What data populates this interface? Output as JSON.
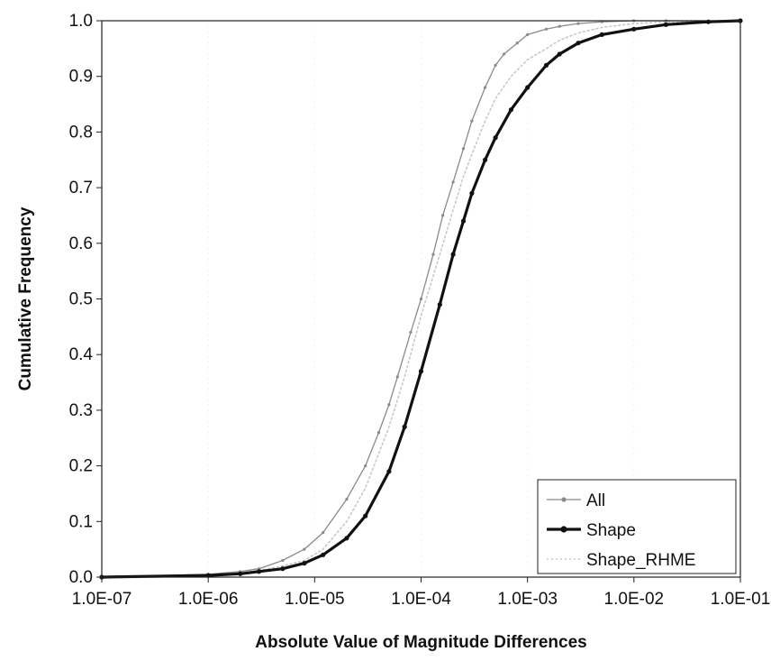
{
  "chart_data": {
    "type": "line",
    "title": "",
    "xlabel": "Absolute Value of Magnitude Differences",
    "ylabel": "Cumulative Frequency",
    "x_scale": "log",
    "xlim": [
      1e-07,
      0.1
    ],
    "ylim": [
      0.0,
      1.0
    ],
    "x_tick_labels": [
      "1.0E-07",
      "1.0E-06",
      "1.0E-05",
      "1.0E-04",
      "1.0E-03",
      "1.0E-02",
      "1.0E-01"
    ],
    "y_tick_labels": [
      "0.0",
      "0.1",
      "0.2",
      "0.3",
      "0.4",
      "0.5",
      "0.6",
      "0.7",
      "0.8",
      "0.9",
      "1.0"
    ],
    "legend_position": "bottom-right",
    "series": [
      {
        "name": "All",
        "color": "#8a8a8a",
        "style": "thin line with small markers",
        "x": [
          1e-07,
          1e-06,
          2e-06,
          3e-06,
          5e-06,
          8e-06,
          1.2e-05,
          2e-05,
          3e-05,
          4e-05,
          5e-05,
          6e-05,
          8e-05,
          0.0001,
          0.00013,
          0.00016,
          0.0002,
          0.00025,
          0.0003,
          0.0004,
          0.0005,
          0.0006,
          0.0008,
          0.001,
          0.0015,
          0.002,
          0.003,
          0.005,
          0.01,
          0.02,
          0.1
        ],
        "values": [
          0.0,
          0.005,
          0.01,
          0.015,
          0.03,
          0.05,
          0.08,
          0.14,
          0.2,
          0.26,
          0.31,
          0.36,
          0.44,
          0.5,
          0.58,
          0.65,
          0.71,
          0.77,
          0.82,
          0.88,
          0.92,
          0.94,
          0.96,
          0.975,
          0.985,
          0.99,
          0.995,
          0.998,
          1.0,
          1.0,
          1.0
        ]
      },
      {
        "name": "Shape",
        "color": "#111111",
        "style": "thick line with markers",
        "x": [
          1e-07,
          1e-06,
          2e-06,
          3e-06,
          5e-06,
          8e-06,
          1.2e-05,
          2e-05,
          3e-05,
          5e-05,
          7e-05,
          0.0001,
          0.00015,
          0.0002,
          0.00025,
          0.0003,
          0.0004,
          0.0005,
          0.0007,
          0.001,
          0.0015,
          0.002,
          0.003,
          0.005,
          0.01,
          0.02,
          0.05,
          0.1
        ],
        "values": [
          0.0,
          0.003,
          0.006,
          0.01,
          0.015,
          0.025,
          0.04,
          0.07,
          0.11,
          0.19,
          0.27,
          0.37,
          0.49,
          0.58,
          0.64,
          0.69,
          0.75,
          0.79,
          0.84,
          0.88,
          0.92,
          0.94,
          0.96,
          0.975,
          0.985,
          0.993,
          0.998,
          1.0
        ]
      },
      {
        "name": "Shape_RHME",
        "color": "#c8c8c8",
        "style": "thin dotted line",
        "x": [
          1e-07,
          1e-06,
          2e-06,
          3e-06,
          5e-06,
          8e-06,
          1.2e-05,
          2e-05,
          3e-05,
          5e-05,
          7e-05,
          0.0001,
          0.00015,
          0.0002,
          0.00025,
          0.0003,
          0.0004,
          0.0005,
          0.0007,
          0.001,
          0.0015,
          0.002,
          0.003,
          0.005,
          0.01,
          0.02,
          0.1
        ],
        "values": [
          0.0,
          0.005,
          0.008,
          0.012,
          0.02,
          0.03,
          0.05,
          0.1,
          0.16,
          0.27,
          0.36,
          0.47,
          0.58,
          0.66,
          0.72,
          0.76,
          0.82,
          0.86,
          0.9,
          0.93,
          0.95,
          0.965,
          0.978,
          0.988,
          0.995,
          0.998,
          1.0
        ]
      }
    ]
  }
}
